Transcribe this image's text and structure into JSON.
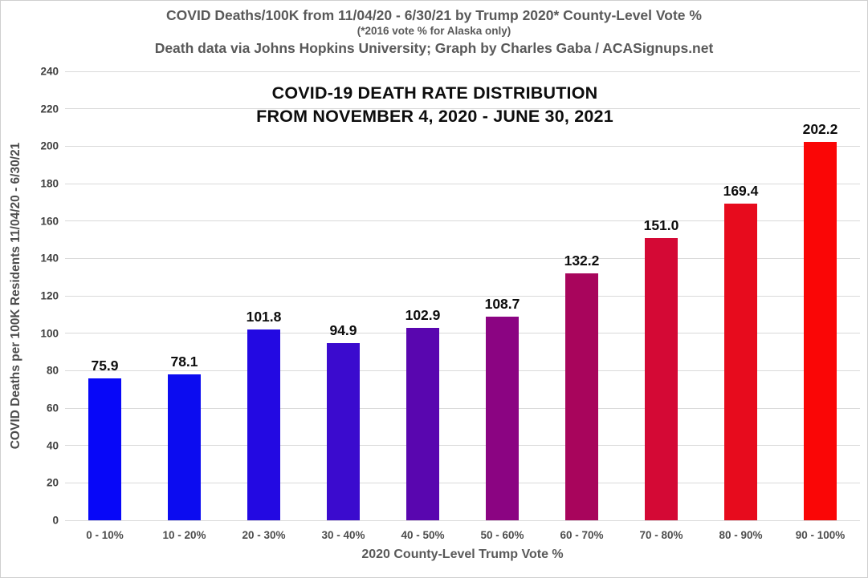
{
  "header": {
    "line1": "COVID Deaths/100K from 11/04/20 - 6/30/21 by Trump 2020* County-Level Vote %",
    "line2": "(*2016 vote % for Alaska only)",
    "line3": "Death data via Johns Hopkins University; Graph by Charles Gaba / ACASignups.net"
  },
  "chart_data": {
    "type": "bar",
    "title_line1": "COVID-19 DEATH RATE DISTRIBUTION",
    "title_line2": "FROM NOVEMBER 4, 2020 - JUNE 30, 2021",
    "xlabel": "2020 County-Level Trump Vote %",
    "ylabel": "COVID Deaths per 100K Residents 11/04/20 - 6/30/21",
    "categories": [
      "0 - 10%",
      "10 - 20%",
      "20 - 30%",
      "30 - 40%",
      "40 - 50%",
      "50 - 60%",
      "60 - 70%",
      "70 - 80%",
      "80 - 90%",
      "90 - 100%"
    ],
    "values": [
      75.9,
      78.1,
      101.8,
      94.9,
      102.9,
      108.7,
      132.2,
      151.0,
      169.4,
      202.2
    ],
    "value_labels": [
      "75.9",
      "78.1",
      "101.8",
      "94.9",
      "102.9",
      "108.7",
      "132.2",
      "151.0",
      "169.4",
      "202.2"
    ],
    "bar_colors": [
      "#0707F8",
      "#0C0CF0",
      "#2309E2",
      "#3B0BCE",
      "#5906AF",
      "#8B0482",
      "#A8055C",
      "#D40935",
      "#E70B1D",
      "#FA0606"
    ],
    "ylim": [
      0,
      240
    ],
    "ytick_step": 20,
    "grid": "horizontal",
    "legend": "none"
  },
  "colors": {
    "background": "#ffffff",
    "border": "#cfcfcf",
    "gridline": "#d9d9d9",
    "header_text": "#595959",
    "axis_text": "#4d4d4d",
    "title_text": "#0d0d0d"
  }
}
